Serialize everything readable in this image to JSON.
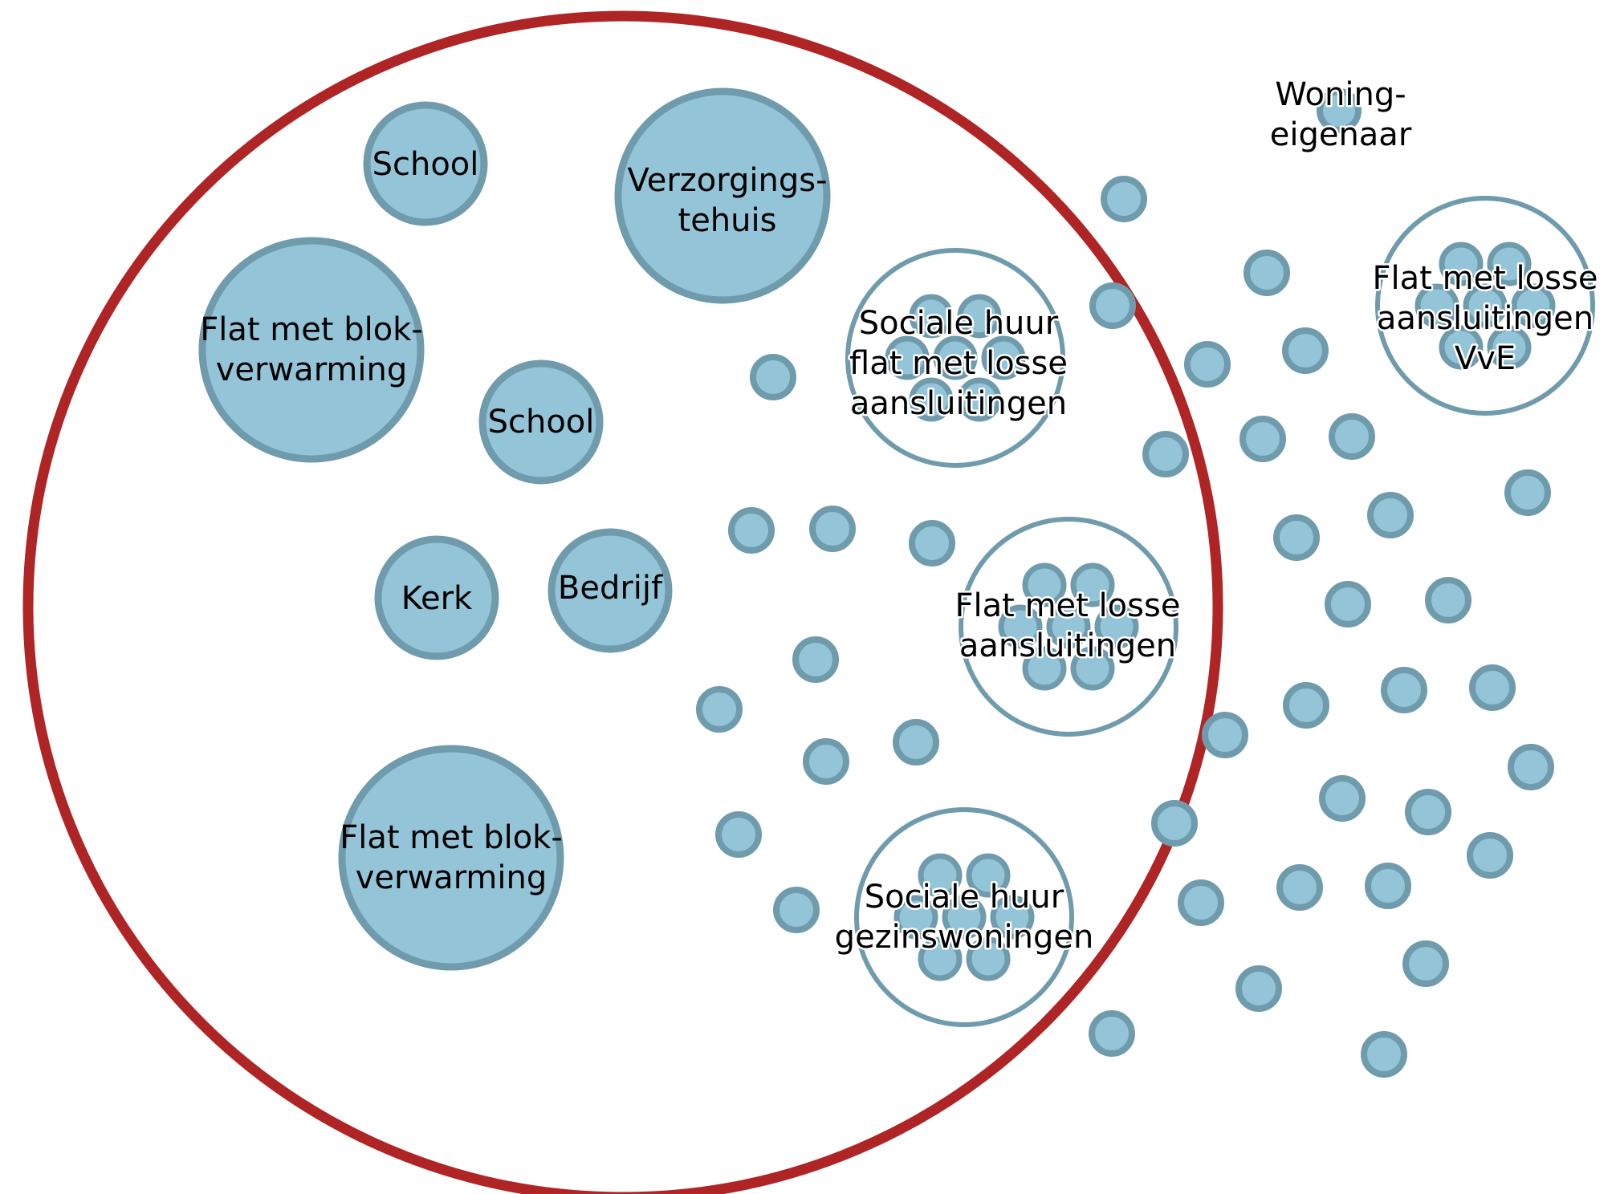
{
  "colors": {
    "boundary": "#AF2525",
    "node_fill": "#93C4D7",
    "node_stroke": "#6F9BAC",
    "cluster_stroke": "#6F9BAC",
    "background": "#FFFFFF"
  },
  "boundary": {
    "label": ""
  },
  "large_nodes": [
    {
      "lines": [
        "School"
      ]
    },
    {
      "lines": [
        "Verzorgings-",
        "tehuis"
      ]
    },
    {
      "lines": [
        "Flat met blok-",
        "verwarming"
      ]
    },
    {
      "lines": [
        "School"
      ]
    },
    {
      "lines": [
        "Kerk"
      ]
    },
    {
      "lines": [
        "Bedrijf"
      ]
    },
    {
      "lines": [
        "Flat met blok-",
        "verwarming"
      ]
    }
  ],
  "clusters": [
    {
      "lines": [
        "Sociale huur",
        "flat met losse",
        "aansluitingen"
      ]
    },
    {
      "lines": [
        "Flat met losse",
        "aansluitingen"
      ]
    },
    {
      "lines": [
        "Sociale huur",
        "gezinswoningen"
      ]
    },
    {
      "lines": [
        "Flat met losse",
        "aansluitingen",
        "VvE"
      ]
    }
  ],
  "legend": {
    "label_line1": "Woning-",
    "label_line2": "eigenaar"
  }
}
